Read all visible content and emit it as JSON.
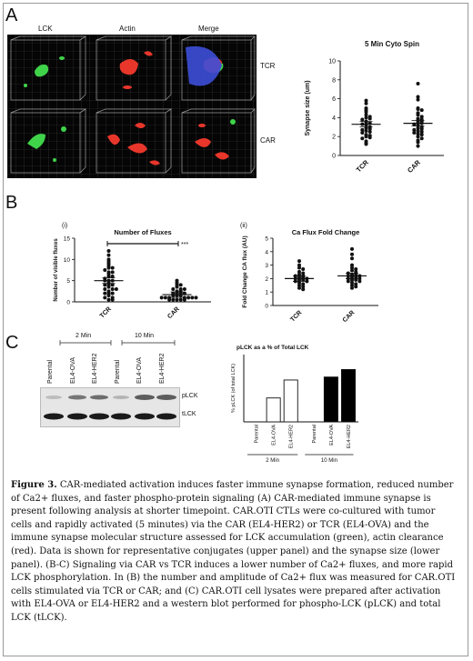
{
  "panels": {
    "a": "A",
    "b": "B",
    "c": "C"
  },
  "panel_a": {
    "col_labels": [
      "LCK",
      "Actin",
      "Merge"
    ],
    "row_labels": [
      "TCR",
      "CAR"
    ]
  },
  "panel_b": {
    "sub_i": "(i)",
    "sub_ii": "(ii)",
    "significance": "***"
  },
  "panel_c": {
    "lanes": [
      "Parental",
      "EL4-OVA",
      "EL4-HER2",
      "Parental",
      "EL4-OVA",
      "EL4-HER2"
    ],
    "time_groups": [
      "2 Min",
      "10 Min"
    ],
    "band_labels": [
      "pLCK",
      "tLCK"
    ]
  },
  "chart_data": [
    {
      "type": "scatter",
      "title": "5 Min Cyto Spin",
      "ylabel": "Synapse size (um)",
      "categories": [
        "TCR",
        "CAR"
      ],
      "ylim": [
        0,
        10
      ],
      "yticks": [
        "0",
        "2",
        "4",
        "6",
        "8",
        "10"
      ],
      "series": [
        {
          "values": [
            5.8,
            5.5,
            5.0,
            4.8,
            4.6,
            4.3,
            4.1,
            4.0,
            3.9,
            3.8,
            3.6,
            3.5,
            3.4,
            3.3,
            3.2,
            3.0,
            2.9,
            2.8,
            2.7,
            2.6,
            2.5,
            2.4,
            2.2,
            2.1,
            2.0,
            1.9,
            1.8,
            1.5,
            1.3,
            1.2
          ]
        },
        {
          "values": [
            7.6,
            6.2,
            5.9,
            5.0,
            4.9,
            4.8,
            4.5,
            4.3,
            4.1,
            3.9,
            3.8,
            3.7,
            3.6,
            3.5,
            3.4,
            3.3,
            3.2,
            3.0,
            2.9,
            2.8,
            2.7,
            2.6,
            2.5,
            2.4,
            2.3,
            2.2,
            2.0,
            1.8,
            1.6,
            1.4,
            1.0
          ]
        }
      ],
      "means": [
        3.3,
        3.4
      ]
    },
    {
      "type": "scatter",
      "title": "Number of Fluxes",
      "ylabel": "Number of visible fluxes",
      "categories": [
        "TCR",
        "CAR"
      ],
      "ylim": [
        0,
        15
      ],
      "yticks": [
        "0",
        "5",
        "10",
        "15"
      ],
      "series": [
        {
          "values": [
            12,
            11,
            10,
            9.5,
            9,
            8.5,
            8,
            8,
            7.5,
            7,
            7,
            6.5,
            6,
            6,
            5.5,
            5,
            5,
            5,
            4.5,
            4,
            4,
            4,
            3.5,
            3,
            3,
            3,
            2.5,
            2,
            2,
            2,
            1.5,
            1,
            1,
            0.5,
            0.5
          ]
        },
        {
          "values": [
            5,
            4.5,
            4,
            4,
            3.5,
            3,
            3,
            3,
            2.5,
            2.5,
            2,
            2,
            2,
            2,
            1.5,
            1.5,
            1.5,
            1,
            1,
            1,
            1,
            1,
            1,
            1,
            0.5,
            0.5,
            0.5,
            0.5,
            0.5
          ]
        }
      ],
      "means": [
        5.0,
        1.7
      ]
    },
    {
      "type": "scatter",
      "title": "Ca Flux Fold Change",
      "ylabel": "Fold Change CA flux (AU)",
      "categories": [
        "TCR",
        "CAR"
      ],
      "ylim": [
        0,
        5
      ],
      "yticks": [
        "0",
        "1",
        "2",
        "3",
        "4",
        "5"
      ],
      "series": [
        {
          "values": [
            3.3,
            3.0,
            2.8,
            2.7,
            2.5,
            2.4,
            2.3,
            2.2,
            2.2,
            2.1,
            2.1,
            2.0,
            2.0,
            1.9,
            1.9,
            1.8,
            1.8,
            1.7,
            1.6,
            1.5,
            1.4,
            1.3,
            1.2
          ]
        },
        {
          "values": [
            4.2,
            3.8,
            3.5,
            3.0,
            2.8,
            2.7,
            2.6,
            2.5,
            2.4,
            2.3,
            2.3,
            2.2,
            2.2,
            2.1,
            2.1,
            2.0,
            2.0,
            1.9,
            1.9,
            1.8,
            1.8,
            1.7,
            1.6,
            1.5,
            1.4,
            1.3
          ]
        }
      ],
      "means": [
        2.0,
        2.2
      ]
    },
    {
      "type": "bar",
      "title": "pLCK as a % of Total LCK",
      "ylabel": "% pLCK (of total LCK)",
      "categories": [
        "Parental",
        "EL4-OVA",
        "EL4-HER2",
        "Parental",
        "EL4-OVA",
        "EL4-HER2"
      ],
      "groups": [
        "2 Min",
        "10 Min"
      ],
      "values": [
        0,
        16,
        28,
        0,
        30,
        35
      ],
      "ylim": [
        0,
        45
      ]
    }
  ],
  "caption": {
    "label": "Figure 3.",
    "text": " CAR-mediated activation induces faster immune synapse formation,  reduced number of Ca2+ fluxes, and faster phospho-protein signaling (A) CAR-mediated immune synapse is present following analysis at shorter timepoint. CAR.OTI CTLs were co-cultured with tumor cells and rapidly activated (5 minutes) via the CAR (EL4-HER2) or TCR (EL4-OVA) and the immune synapse molecular structure assessed for LCK accumulation (green), actin clearance (red). Data is shown for representative conjugates (upper panel) and the synapse size (lower panel). (B-C) Signaling via CAR vs TCR induces a lower number of Ca2+ fluxes, and more rapid LCK phosphorylation. In (B) the number and amplitude of Ca2+ flux was measured for CAR.OTI cells stimulated via TCR or CAR; and (C) CAR.OTI cell lysates were prepared after activation with EL4-OVA or EL4-HER2 and a western blot performed for phospho-LCK (pLCK) and total LCK (tLCK)."
  },
  "colors": {
    "text": "#111111",
    "bar_open": "#ffffff",
    "bar_filled": "#000000",
    "lck_green": "#3fd34a",
    "actin_red": "#e8362b",
    "merge_blue": "#3d4fd8"
  }
}
